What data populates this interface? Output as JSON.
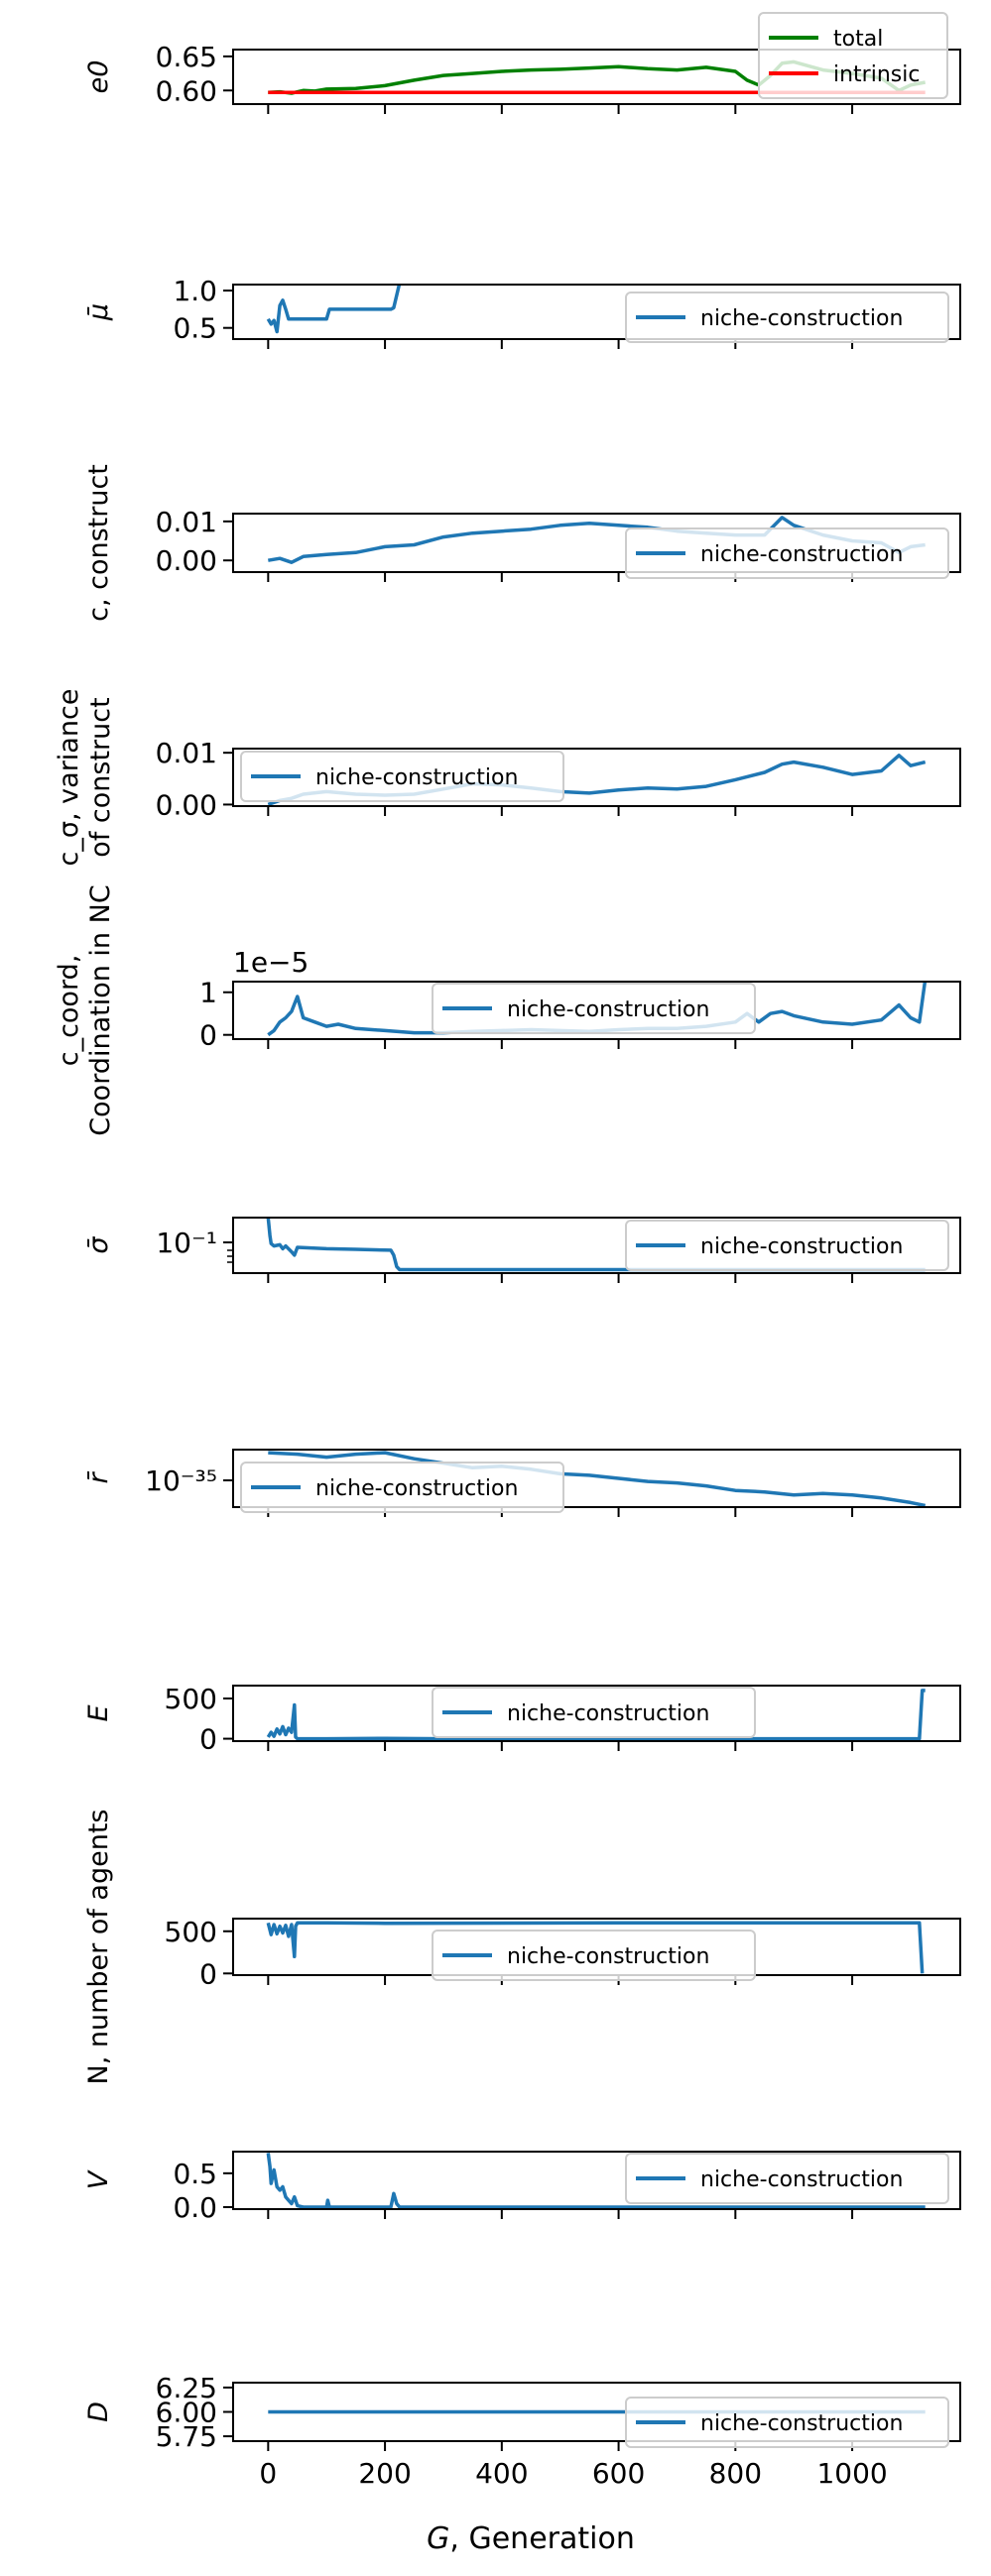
{
  "figure": {
    "xlabel_var": "G",
    "xlabel_rest": ", Generation"
  },
  "colors": {
    "series_blue": "#1f77b4",
    "total_green": "#008000",
    "intrinsic_red": "#ff0000",
    "axis": "#000000"
  },
  "chart_data": [
    {
      "type": "line",
      "ylabel": "e0",
      "ylim": [
        0.58,
        0.66
      ],
      "yticks": [
        0.6,
        0.65
      ],
      "ytick_labels": [
        "0.60",
        "0.65"
      ],
      "legend_loc": "top-right",
      "series": [
        {
          "name": "total",
          "color": "#008000",
          "x": [
            0,
            20,
            40,
            60,
            80,
            100,
            150,
            200,
            250,
            300,
            350,
            400,
            450,
            500,
            550,
            600,
            650,
            700,
            750,
            800,
            820,
            840,
            860,
            880,
            900,
            950,
            1000,
            1050,
            1080,
            1100,
            1125
          ],
          "y": [
            0.597,
            0.598,
            0.596,
            0.6,
            0.599,
            0.602,
            0.603,
            0.607,
            0.615,
            0.622,
            0.625,
            0.628,
            0.63,
            0.631,
            0.633,
            0.635,
            0.632,
            0.63,
            0.634,
            0.628,
            0.615,
            0.608,
            0.622,
            0.64,
            0.642,
            0.63,
            0.625,
            0.618,
            0.6,
            0.608,
            0.612
          ]
        },
        {
          "name": "intrinsic",
          "color": "#ff0000",
          "x": [
            0,
            1125
          ],
          "y": [
            0.597,
            0.597
          ]
        }
      ]
    },
    {
      "type": "line",
      "ylabel": "μ̄",
      "ylim": [
        0.35,
        1.08
      ],
      "yticks": [
        0.5,
        1.0
      ],
      "ytick_labels": [
        "0.5",
        "1.0"
      ],
      "legend_loc": "lower-right",
      "series": [
        {
          "name": "niche-construction",
          "color": "#1f77b4",
          "x": [
            0,
            5,
            10,
            15,
            20,
            25,
            30,
            35,
            40,
            45,
            100,
            105,
            210,
            215,
            225,
            230,
            1125
          ],
          "y": [
            0.62,
            0.55,
            0.6,
            0.45,
            0.8,
            0.87,
            0.75,
            0.62,
            0.62,
            0.62,
            0.62,
            0.75,
            0.75,
            0.77,
            1.1,
            1.1,
            1.1
          ]
        }
      ]
    },
    {
      "type": "line",
      "ylabel": "c, construct",
      "ylim": [
        -0.003,
        0.012
      ],
      "yticks": [
        0.0,
        0.01
      ],
      "ytick_labels": [
        "0.00",
        "0.01"
      ],
      "legend_loc": "lower-right",
      "series": [
        {
          "name": "niche-construction",
          "color": "#1f77b4",
          "x": [
            0,
            20,
            40,
            60,
            100,
            150,
            200,
            250,
            300,
            350,
            400,
            450,
            500,
            550,
            600,
            650,
            700,
            750,
            800,
            850,
            880,
            900,
            950,
            1000,
            1050,
            1080,
            1100,
            1125
          ],
          "y": [
            0.0,
            0.0005,
            -0.0005,
            0.001,
            0.0015,
            0.002,
            0.0035,
            0.004,
            0.006,
            0.007,
            0.0075,
            0.008,
            0.009,
            0.0095,
            0.009,
            0.0085,
            0.0075,
            0.007,
            0.0065,
            0.0065,
            0.011,
            0.009,
            0.0065,
            0.005,
            0.0045,
            0.002,
            0.0035,
            0.004
          ]
        }
      ]
    },
    {
      "type": "line",
      "ylabel": [
        "c_σ, variance",
        "of construct"
      ],
      "ylim": [
        -0.0003,
        0.0108
      ],
      "yticks": [
        0.0,
        0.01
      ],
      "ytick_labels": [
        "0.00",
        "0.01"
      ],
      "legend_loc": "top-left",
      "series": [
        {
          "name": "niche-construction",
          "color": "#1f77b4",
          "x": [
            0,
            20,
            40,
            60,
            100,
            150,
            200,
            250,
            300,
            350,
            400,
            450,
            500,
            550,
            600,
            650,
            700,
            750,
            800,
            850,
            880,
            900,
            950,
            1000,
            1050,
            1080,
            1100,
            1125
          ],
          "y": [
            0.0,
            0.0008,
            0.0012,
            0.002,
            0.0025,
            0.002,
            0.0018,
            0.002,
            0.003,
            0.004,
            0.0038,
            0.0032,
            0.0025,
            0.0022,
            0.0028,
            0.0032,
            0.003,
            0.0035,
            0.0048,
            0.0062,
            0.0078,
            0.0082,
            0.0072,
            0.0058,
            0.0065,
            0.0095,
            0.0075,
            0.0082
          ]
        }
      ]
    },
    {
      "type": "line",
      "ylabel": [
        "c_coord,",
        "Coordination in NC"
      ],
      "offset_text": "1e−5",
      "ylim": [
        -0.1,
        1.25
      ],
      "yticks": [
        0,
        1
      ],
      "ytick_labels": [
        "0",
        "1"
      ],
      "legend_loc": "top-center",
      "series": [
        {
          "name": "niche-construction",
          "color": "#1f77b4",
          "x": [
            0,
            10,
            20,
            30,
            40,
            50,
            60,
            80,
            100,
            120,
            150,
            200,
            250,
            300,
            350,
            400,
            450,
            500,
            550,
            600,
            650,
            700,
            750,
            800,
            820,
            840,
            860,
            880,
            900,
            950,
            1000,
            1050,
            1080,
            1100,
            1115,
            1125
          ],
          "y": [
            0.0,
            0.1,
            0.3,
            0.4,
            0.55,
            0.9,
            0.4,
            0.3,
            0.2,
            0.25,
            0.15,
            0.1,
            0.05,
            0.05,
            0.08,
            0.1,
            0.12,
            0.1,
            0.08,
            0.12,
            0.15,
            0.15,
            0.2,
            0.3,
            0.5,
            0.3,
            0.5,
            0.55,
            0.45,
            0.3,
            0.25,
            0.35,
            0.7,
            0.4,
            0.3,
            1.3
          ]
        }
      ]
    },
    {
      "type": "line",
      "ylabel": "σ̄",
      "yscale": "log",
      "ytick_labels": [
        "10⁻¹"
      ],
      "legend_loc": "top-right",
      "series": [
        {
          "name": "niche-construction",
          "color": "#1f77b4",
          "x": [
            0,
            3,
            5,
            10,
            20,
            25,
            30,
            40,
            45,
            50,
            100,
            150,
            210,
            215,
            220,
            225,
            1125
          ],
          "y": [
            0.3,
            0.15,
            0.11,
            0.1,
            0.105,
            0.09,
            0.1,
            0.08,
            0.07,
            0.095,
            0.09,
            0.088,
            0.085,
            0.07,
            0.045,
            0.04,
            0.04
          ]
        }
      ]
    },
    {
      "type": "line",
      "ylabel": "r̄",
      "yscale": "log",
      "ytick_labels": [
        "10⁻³⁵"
      ],
      "legend_loc": "lower-left",
      "series": [
        {
          "name": "niche-construction",
          "color": "#1f77b4",
          "x": [
            0,
            50,
            100,
            150,
            200,
            250,
            300,
            350,
            400,
            450,
            500,
            550,
            600,
            650,
            700,
            750,
            800,
            850,
            900,
            950,
            1000,
            1050,
            1100,
            1125
          ],
          "y": [
            -33.5,
            -33.6,
            -33.8,
            -33.6,
            -33.5,
            -33.9,
            -34.2,
            -34.5,
            -34.4,
            -34.6,
            -34.9,
            -35.0,
            -35.2,
            -35.4,
            -35.5,
            -35.7,
            -36.0,
            -36.1,
            -36.3,
            -36.2,
            -36.3,
            -36.5,
            -36.8,
            -37.0
          ]
        }
      ]
    },
    {
      "type": "line",
      "ylabel": "E",
      "ylim": [
        -30,
        660
      ],
      "yticks": [
        0,
        500
      ],
      "ytick_labels": [
        "0",
        "500"
      ],
      "legend_loc": "top-center",
      "series": [
        {
          "name": "niche-construction",
          "color": "#1f77b4",
          "x": [
            0,
            5,
            10,
            15,
            20,
            25,
            30,
            35,
            40,
            45,
            47,
            50,
            60,
            100,
            200,
            300,
            600,
            1000,
            1115,
            1120,
            1125
          ],
          "y": [
            20,
            80,
            30,
            120,
            60,
            150,
            50,
            130,
            80,
            420,
            20,
            0,
            0,
            0,
            5,
            0,
            0,
            0,
            0,
            600,
            600
          ]
        }
      ]
    },
    {
      "type": "line",
      "ylabel": "N, number of agents",
      "ylim": [
        -20,
        650
      ],
      "yticks": [
        0,
        500
      ],
      "ytick_labels": [
        "0",
        "500"
      ],
      "legend_loc": "bottom-center",
      "series": [
        {
          "name": "niche-construction",
          "color": "#1f77b4",
          "x": [
            0,
            5,
            10,
            15,
            20,
            25,
            30,
            35,
            40,
            45,
            47,
            50,
            100,
            200,
            600,
            1110,
            1115,
            1120
          ],
          "y": [
            600,
            460,
            580,
            470,
            560,
            480,
            570,
            440,
            580,
            200,
            560,
            600,
            600,
            595,
            600,
            600,
            600,
            0
          ]
        }
      ]
    },
    {
      "type": "line",
      "ylabel": "V",
      "ylim": [
        -0.03,
        0.82
      ],
      "yticks": [
        0.0,
        0.5
      ],
      "ytick_labels": [
        "0.0",
        "0.5"
      ],
      "legend_loc": "top-right",
      "series": [
        {
          "name": "niche-construction",
          "color": "#1f77b4",
          "x": [
            0,
            3,
            5,
            10,
            15,
            20,
            25,
            30,
            35,
            40,
            45,
            50,
            60,
            100,
            102,
            105,
            200,
            210,
            215,
            220,
            225,
            1125
          ],
          "y": [
            0.8,
            0.6,
            0.35,
            0.55,
            0.3,
            0.25,
            0.3,
            0.15,
            0.1,
            0.05,
            0.15,
            0.02,
            0.0,
            0.0,
            0.1,
            0.0,
            0.0,
            0.0,
            0.2,
            0.05,
            0.0,
            0.0
          ]
        }
      ]
    },
    {
      "type": "line",
      "ylabel": "D",
      "ylim": [
        5.7,
        6.3
      ],
      "yticks": [
        5.75,
        6.0,
        6.25
      ],
      "ytick_labels": [
        "5.75",
        "6.00",
        "6.25"
      ],
      "xlim": [
        -60,
        1185
      ],
      "xticks": [
        0,
        200,
        400,
        600,
        800,
        1000
      ],
      "xtick_labels": [
        "0",
        "200",
        "400",
        "600",
        "800",
        "1000"
      ],
      "legend_loc": "lower-right",
      "series": [
        {
          "name": "niche-construction",
          "color": "#1f77b4",
          "x": [
            0,
            1125
          ],
          "y": [
            6.0,
            6.0
          ]
        }
      ]
    }
  ]
}
